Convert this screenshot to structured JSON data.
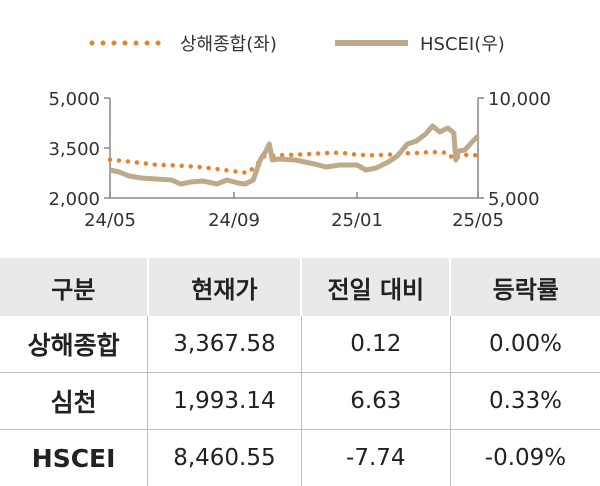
{
  "colors": {
    "shanghai": "#E8822A",
    "hscei": "#BCAA8A",
    "axis": "#888888",
    "header_bg": "#E9E9E9"
  },
  "chart_data": {
    "type": "line",
    "legend": [
      {
        "name": "상해종합(좌)",
        "style": "dotted",
        "color": "#E8822A"
      },
      {
        "name": "HSCEI(우)",
        "style": "solid",
        "color": "#BCAA8A"
      }
    ],
    "legend_position": "top-center",
    "grid": false,
    "x_ticks": [
      "24/05",
      "24/09",
      "25/01",
      "25/05"
    ],
    "x_tick_dates": [
      "2024-05-01",
      "2024-09-01",
      "2025-01-01",
      "2025-05-01"
    ],
    "x_range": [
      "2024-05-01",
      "2025-05-01"
    ],
    "y_left": {
      "label": "",
      "ticks": [
        "5,000",
        "3,500",
        "2,000"
      ],
      "range": [
        2000,
        5000
      ]
    },
    "y_right": {
      "label": "",
      "ticks": [
        "10,000",
        "5,000"
      ],
      "range": [
        5000,
        10000
      ]
    },
    "series": [
      {
        "name": "상해종합(좌)",
        "axis": "left",
        "points": [
          [
            "2024-05-01",
            3150
          ],
          [
            "2024-05-15",
            3110
          ],
          [
            "2024-06-01",
            3050
          ],
          [
            "2024-06-15",
            3000
          ],
          [
            "2024-07-01",
            2980
          ],
          [
            "2024-07-15",
            2960
          ],
          [
            "2024-08-01",
            2920
          ],
          [
            "2024-08-15",
            2870
          ],
          [
            "2024-09-01",
            2800
          ],
          [
            "2024-09-15",
            2750
          ],
          [
            "2024-09-25",
            3050
          ],
          [
            "2024-10-01",
            3250
          ],
          [
            "2024-10-15",
            3280
          ],
          [
            "2024-11-01",
            3300
          ],
          [
            "2024-11-15",
            3320
          ],
          [
            "2024-12-01",
            3350
          ],
          [
            "2024-12-15",
            3360
          ],
          [
            "2025-01-01",
            3300
          ],
          [
            "2025-01-15",
            3280
          ],
          [
            "2025-02-01",
            3300
          ],
          [
            "2025-02-15",
            3340
          ],
          [
            "2025-03-01",
            3350
          ],
          [
            "2025-03-15",
            3380
          ],
          [
            "2025-04-01",
            3360
          ],
          [
            "2025-04-07",
            3150
          ],
          [
            "2025-04-15",
            3300
          ],
          [
            "2025-05-01",
            3280
          ]
        ]
      },
      {
        "name": "HSCEI(우)",
        "axis": "right",
        "points": [
          [
            "2024-05-01",
            6400
          ],
          [
            "2024-05-10",
            6300
          ],
          [
            "2024-05-20",
            6100
          ],
          [
            "2024-06-01",
            6000
          ],
          [
            "2024-06-15",
            5950
          ],
          [
            "2024-07-01",
            5900
          ],
          [
            "2024-07-10",
            5700
          ],
          [
            "2024-07-20",
            5800
          ],
          [
            "2024-08-01",
            5850
          ],
          [
            "2024-08-15",
            5700
          ],
          [
            "2024-08-25",
            5900
          ],
          [
            "2024-09-05",
            5750
          ],
          [
            "2024-09-12",
            5700
          ],
          [
            "2024-09-20",
            5900
          ],
          [
            "2024-09-27",
            6900
          ],
          [
            "2024-10-02",
            7300
          ],
          [
            "2024-10-06",
            7700
          ],
          [
            "2024-10-09",
            6900
          ],
          [
            "2024-10-15",
            6950
          ],
          [
            "2024-11-01",
            6900
          ],
          [
            "2024-11-10",
            6800
          ],
          [
            "2024-11-20",
            6700
          ],
          [
            "2024-12-01",
            6550
          ],
          [
            "2024-12-15",
            6650
          ],
          [
            "2025-01-01",
            6650
          ],
          [
            "2025-01-10",
            6400
          ],
          [
            "2025-01-20",
            6500
          ],
          [
            "2025-02-01",
            6800
          ],
          [
            "2025-02-10",
            7100
          ],
          [
            "2025-02-20",
            7700
          ],
          [
            "2025-03-01",
            7850
          ],
          [
            "2025-03-10",
            8200
          ],
          [
            "2025-03-17",
            8600
          ],
          [
            "2025-03-24",
            8300
          ],
          [
            "2025-04-01",
            8500
          ],
          [
            "2025-04-07",
            8250
          ],
          [
            "2025-04-09",
            6900
          ],
          [
            "2025-04-12",
            7350
          ],
          [
            "2025-04-18",
            7400
          ],
          [
            "2025-04-25",
            7800
          ],
          [
            "2025-05-01",
            8100
          ]
        ]
      }
    ]
  },
  "table": {
    "headers": [
      "구분",
      "현재가",
      "전일 대비",
      "등락률"
    ],
    "rows": [
      [
        "상해종합",
        "3,367.58",
        "0.12",
        "0.00%"
      ],
      [
        "심천",
        "1,993.14",
        "6.63",
        "0.33%"
      ],
      [
        "HSCEI",
        "8,460.55",
        "-7.74",
        "-0.09%"
      ]
    ]
  }
}
